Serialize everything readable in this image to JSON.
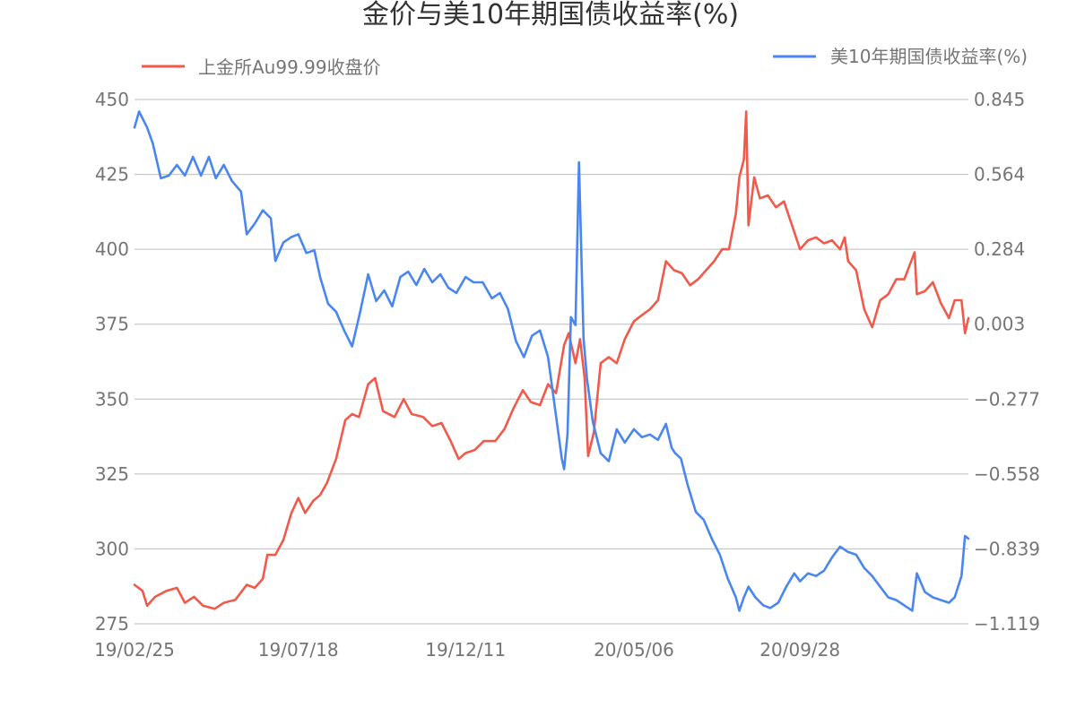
{
  "chart_data": {
    "type": "line",
    "title": "金价与美10年期国债收益率(%)",
    "x_tick_labels": [
      "19/02/25",
      "19/07/18",
      "19/12/11",
      "20/05/06",
      "20/09/28"
    ],
    "left_axis": {
      "ticks": [
        "450",
        "425",
        "400",
        "375",
        "350",
        "325",
        "300",
        "275"
      ],
      "ylim": [
        275,
        450
      ]
    },
    "right_axis": {
      "ticks": [
        "0.845",
        "0.564",
        "0.284",
        "0.003",
        "−0.277",
        "−0.558",
        "−0.839",
        "−1.119"
      ],
      "ylim": [
        -1.119,
        0.845
      ]
    },
    "grid": true,
    "legend_placement": "top",
    "series": [
      {
        "name": "上金所Au99.99收盘价",
        "axis": "left",
        "color": "#f15a4a",
        "points": [
          [
            "19/02/25",
            288
          ],
          [
            "19/03/04",
            286
          ],
          [
            "19/03/08",
            281
          ],
          [
            "19/03/15",
            284
          ],
          [
            "19/03/25",
            286
          ],
          [
            "19/04/03",
            287
          ],
          [
            "19/04/10",
            282
          ],
          [
            "19/04/18",
            284
          ],
          [
            "19/04/26",
            281
          ],
          [
            "19/05/06",
            280
          ],
          [
            "19/05/14",
            282
          ],
          [
            "19/05/24",
            283
          ],
          [
            "19/06/03",
            288
          ],
          [
            "19/06/10",
            287
          ],
          [
            "19/06/17",
            290
          ],
          [
            "19/06/21",
            298
          ],
          [
            "19/06/28",
            298
          ],
          [
            "19/07/05",
            303
          ],
          [
            "19/07/12",
            312
          ],
          [
            "19/07/18",
            317
          ],
          [
            "19/07/24",
            312
          ],
          [
            "19/07/31",
            316
          ],
          [
            "19/08/06",
            318
          ],
          [
            "19/08/12",
            322
          ],
          [
            "19/08/20",
            330
          ],
          [
            "19/08/28",
            343
          ],
          [
            "19/09/03",
            345
          ],
          [
            "19/09/09",
            344
          ],
          [
            "19/09/17",
            355
          ],
          [
            "19/09/23",
            357
          ],
          [
            "19/09/30",
            346
          ],
          [
            "19/10/10",
            344
          ],
          [
            "19/10/18",
            350
          ],
          [
            "19/10/25",
            345
          ],
          [
            "19/11/04",
            344
          ],
          [
            "19/11/12",
            341
          ],
          [
            "19/11/20",
            342
          ],
          [
            "19/11/28",
            336
          ],
          [
            "19/12/05",
            330
          ],
          [
            "19/12/11",
            332
          ],
          [
            "19/12/19",
            333
          ],
          [
            "19/12/27",
            336
          ],
          [
            "20/01/06",
            336
          ],
          [
            "20/01/14",
            340
          ],
          [
            "20/01/22",
            347
          ],
          [
            "20/01/30",
            353
          ],
          [
            "20/02/06",
            349
          ],
          [
            "20/02/14",
            348
          ],
          [
            "20/02/21",
            355
          ],
          [
            "20/02/28",
            352
          ],
          [
            "20/03/06",
            368
          ],
          [
            "20/03/10",
            372
          ],
          [
            "20/03/16",
            362
          ],
          [
            "20/03/20",
            370
          ],
          [
            "20/03/24",
            357
          ],
          [
            "20/03/27",
            331
          ],
          [
            "20/04/01",
            339
          ],
          [
            "20/04/07",
            362
          ],
          [
            "20/04/14",
            364
          ],
          [
            "20/04/21",
            362
          ],
          [
            "20/04/28",
            370
          ],
          [
            "20/05/06",
            376
          ],
          [
            "20/05/13",
            378
          ],
          [
            "20/05/20",
            380
          ],
          [
            "20/05/27",
            383
          ],
          [
            "20/06/03",
            396
          ],
          [
            "20/06/10",
            393
          ],
          [
            "20/06/17",
            392
          ],
          [
            "20/06/24",
            388
          ],
          [
            "20/07/01",
            390
          ],
          [
            "20/07/08",
            393
          ],
          [
            "20/07/15",
            396
          ],
          [
            "20/07/22",
            400
          ],
          [
            "20/07/28",
            400
          ],
          [
            "20/08/03",
            412
          ],
          [
            "20/08/06",
            424
          ],
          [
            "20/08/10",
            430
          ],
          [
            "20/08/12",
            446
          ],
          [
            "20/08/14",
            408
          ],
          [
            "20/08/19",
            424
          ],
          [
            "20/08/24",
            417
          ],
          [
            "20/08/31",
            418
          ],
          [
            "20/09/07",
            414
          ],
          [
            "20/09/14",
            416
          ],
          [
            "20/09/21",
            408
          ],
          [
            "20/09/28",
            400
          ],
          [
            "20/10/05",
            403
          ],
          [
            "20/10/12",
            404
          ],
          [
            "20/10/19",
            402
          ],
          [
            "20/10/26",
            403
          ],
          [
            "20/11/02",
            400
          ],
          [
            "20/11/06",
            404
          ],
          [
            "20/11/09",
            396
          ],
          [
            "20/11/16",
            393
          ],
          [
            "20/11/23",
            380
          ],
          [
            "20/11/30",
            374
          ],
          [
            "20/12/07",
            383
          ],
          [
            "20/12/14",
            385
          ],
          [
            "20/12/21",
            390
          ],
          [
            "20/12/28",
            390
          ],
          [
            "21/01/06",
            399
          ],
          [
            "21/01/08",
            385
          ],
          [
            "21/01/15",
            386
          ],
          [
            "21/01/22",
            389
          ],
          [
            "21/01/29",
            382
          ],
          [
            "21/02/05",
            377
          ],
          [
            "21/02/10",
            383
          ],
          [
            "21/02/16",
            383
          ],
          [
            "21/02/19",
            372
          ],
          [
            "21/02/22",
            377
          ]
        ]
      },
      {
        "name": "美10年期国债收益率(%)",
        "axis": "right",
        "color": "#4a86f0",
        "points": [
          [
            "19/02/25",
            0.74
          ],
          [
            "19/03/01",
            0.8
          ],
          [
            "19/03/08",
            0.74
          ],
          [
            "19/03/13",
            0.68
          ],
          [
            "19/03/20",
            0.55
          ],
          [
            "19/03/27",
            0.56
          ],
          [
            "19/04/03",
            0.6
          ],
          [
            "19/04/10",
            0.56
          ],
          [
            "19/04/17",
            0.63
          ],
          [
            "19/04/24",
            0.56
          ],
          [
            "19/05/01",
            0.63
          ],
          [
            "19/05/07",
            0.55
          ],
          [
            "19/05/14",
            0.6
          ],
          [
            "19/05/21",
            0.54
          ],
          [
            "19/05/29",
            0.5
          ],
          [
            "19/06/03",
            0.34
          ],
          [
            "19/06/10",
            0.38
          ],
          [
            "19/06/17",
            0.43
          ],
          [
            "19/06/24",
            0.4
          ],
          [
            "19/06/28",
            0.24
          ],
          [
            "19/07/05",
            0.31
          ],
          [
            "19/07/12",
            0.33
          ],
          [
            "19/07/18",
            0.34
          ],
          [
            "19/07/25",
            0.27
          ],
          [
            "19/08/01",
            0.28
          ],
          [
            "19/08/06",
            0.18
          ],
          [
            "19/08/13",
            0.08
          ],
          [
            "19/08/20",
            0.05
          ],
          [
            "19/08/27",
            -0.02
          ],
          [
            "19/09/03",
            -0.08
          ],
          [
            "19/09/10",
            0.05
          ],
          [
            "19/09/17",
            0.19
          ],
          [
            "19/09/24",
            0.09
          ],
          [
            "19/10/01",
            0.13
          ],
          [
            "19/10/08",
            0.07
          ],
          [
            "19/10/15",
            0.18
          ],
          [
            "19/10/22",
            0.2
          ],
          [
            "19/10/29",
            0.15
          ],
          [
            "19/11/05",
            0.21
          ],
          [
            "19/11/12",
            0.16
          ],
          [
            "19/11/19",
            0.19
          ],
          [
            "19/11/26",
            0.14
          ],
          [
            "19/12/03",
            0.12
          ],
          [
            "19/12/11",
            0.18
          ],
          [
            "19/12/18",
            0.16
          ],
          [
            "19/12/26",
            0.16
          ],
          [
            "20/01/03",
            0.1
          ],
          [
            "20/01/10",
            0.12
          ],
          [
            "20/01/17",
            0.06
          ],
          [
            "20/01/24",
            -0.06
          ],
          [
            "20/01/31",
            -0.12
          ],
          [
            "20/02/07",
            -0.04
          ],
          [
            "20/02/14",
            -0.02
          ],
          [
            "20/02/21",
            -0.12
          ],
          [
            "20/02/28",
            -0.34
          ],
          [
            "20/03/04",
            -0.5
          ],
          [
            "20/03/06",
            -0.54
          ],
          [
            "20/03/09",
            -0.41
          ],
          [
            "20/03/12",
            0.03
          ],
          [
            "20/03/16",
            0.0
          ],
          [
            "20/03/19",
            0.61
          ],
          [
            "20/03/23",
            -0.05
          ],
          [
            "20/03/26",
            -0.2
          ],
          [
            "20/03/31",
            -0.36
          ],
          [
            "20/04/07",
            -0.48
          ],
          [
            "20/04/14",
            -0.51
          ],
          [
            "20/04/21",
            -0.39
          ],
          [
            "20/04/28",
            -0.44
          ],
          [
            "20/05/06",
            -0.39
          ],
          [
            "20/05/13",
            -0.42
          ],
          [
            "20/05/20",
            -0.41
          ],
          [
            "20/05/27",
            -0.43
          ],
          [
            "20/06/03",
            -0.37
          ],
          [
            "20/06/08",
            -0.46
          ],
          [
            "20/06/11",
            -0.48
          ],
          [
            "20/06/16",
            -0.5
          ],
          [
            "20/06/22",
            -0.6
          ],
          [
            "20/06/29",
            -0.7
          ],
          [
            "20/07/06",
            -0.73
          ],
          [
            "20/07/13",
            -0.8
          ],
          [
            "20/07/20",
            -0.86
          ],
          [
            "20/07/27",
            -0.95
          ],
          [
            "20/08/03",
            -1.02
          ],
          [
            "20/08/06",
            -1.07
          ],
          [
            "20/08/10",
            -1.02
          ],
          [
            "20/08/14",
            -0.98
          ],
          [
            "20/08/20",
            -1.02
          ],
          [
            "20/08/27",
            -1.05
          ],
          [
            "20/09/02",
            -1.06
          ],
          [
            "20/09/09",
            -1.04
          ],
          [
            "20/09/16",
            -0.98
          ],
          [
            "20/09/23",
            -0.93
          ],
          [
            "20/09/28",
            -0.96
          ],
          [
            "20/10/05",
            -0.93
          ],
          [
            "20/10/12",
            -0.94
          ],
          [
            "20/10/19",
            -0.92
          ],
          [
            "20/10/26",
            -0.87
          ],
          [
            "20/11/02",
            -0.83
          ],
          [
            "20/11/09",
            -0.85
          ],
          [
            "20/11/16",
            -0.86
          ],
          [
            "20/11/23",
            -0.91
          ],
          [
            "20/11/30",
            -0.94
          ],
          [
            "20/12/07",
            -0.98
          ],
          [
            "20/12/14",
            -1.02
          ],
          [
            "20/12/21",
            -1.03
          ],
          [
            "20/12/28",
            -1.05
          ],
          [
            "21/01/04",
            -1.07
          ],
          [
            "21/01/08",
            -0.93
          ],
          [
            "21/01/15",
            -1.0
          ],
          [
            "21/01/22",
            -1.02
          ],
          [
            "21/01/29",
            -1.03
          ],
          [
            "21/02/05",
            -1.04
          ],
          [
            "21/02/10",
            -1.02
          ],
          [
            "21/02/16",
            -0.94
          ],
          [
            "21/02/19",
            -0.79
          ],
          [
            "21/02/22",
            -0.8
          ]
        ]
      }
    ]
  }
}
